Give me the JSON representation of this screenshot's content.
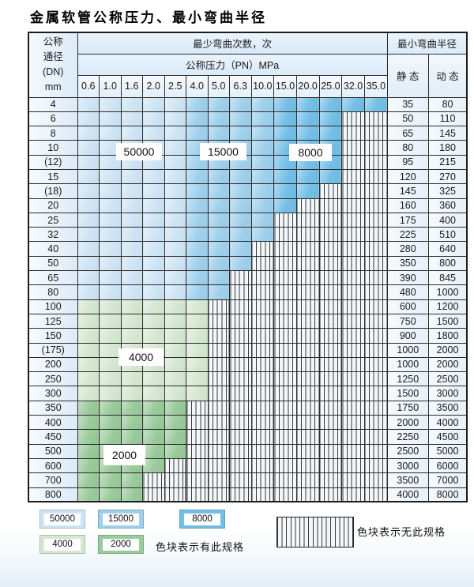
{
  "title": "金属软管公称压力、最小弯曲半径",
  "table": {
    "dn_header": {
      "line1": "公称",
      "line2": "通径",
      "line3": "(DN)",
      "line4": "mm"
    },
    "bend_cycles_header": "最少弯曲次数，次",
    "pressure_header": "公称压力（PN）MPa",
    "pressure_columns": [
      "0.6",
      "1.0",
      "1.6",
      "2.0",
      "2.5",
      "4.0",
      "5.0",
      "6.3",
      "10.0",
      "15.0",
      "20.0",
      "25.0",
      "32.0",
      "35.0"
    ],
    "radius_header": "最小弯曲半径",
    "static_header": "静 态",
    "dynamic_header": "动 态",
    "rows": [
      {
        "dn": "4",
        "colored": 14,
        "zone": "b",
        "static": "35",
        "dynamic": "80"
      },
      {
        "dn": "6",
        "colored": 12,
        "zone": "b",
        "static": "50",
        "dynamic": "110"
      },
      {
        "dn": "8",
        "colored": 12,
        "zone": "b",
        "static": "65",
        "dynamic": "145"
      },
      {
        "dn": "10",
        "colored": 12,
        "zone": "b",
        "static": "80",
        "dynamic": "180"
      },
      {
        "dn": "(12)",
        "colored": 12,
        "zone": "b",
        "static": "95",
        "dynamic": "215"
      },
      {
        "dn": "15",
        "colored": 12,
        "zone": "b",
        "static": "120",
        "dynamic": "270"
      },
      {
        "dn": "(18)",
        "colored": 11,
        "zone": "b",
        "static": "145",
        "dynamic": "325"
      },
      {
        "dn": "20",
        "colored": 10,
        "zone": "b",
        "static": "160",
        "dynamic": "360"
      },
      {
        "dn": "25",
        "colored": 9,
        "zone": "b",
        "static": "175",
        "dynamic": "400"
      },
      {
        "dn": "32",
        "colored": 9,
        "zone": "b",
        "static": "225",
        "dynamic": "510"
      },
      {
        "dn": "40",
        "colored": 8,
        "zone": "b",
        "static": "280",
        "dynamic": "640"
      },
      {
        "dn": "50",
        "colored": 8,
        "zone": "b",
        "static": "350",
        "dynamic": "800"
      },
      {
        "dn": "65",
        "colored": 7,
        "zone": "b",
        "static": "390",
        "dynamic": "845"
      },
      {
        "dn": "80",
        "colored": 7,
        "zone": "b",
        "static": "480",
        "dynamic": "1000"
      },
      {
        "dn": "100",
        "colored": 6,
        "zone": "gl",
        "static": "600",
        "dynamic": "1200"
      },
      {
        "dn": "125",
        "colored": 6,
        "zone": "gl",
        "static": "750",
        "dynamic": "1500"
      },
      {
        "dn": "150",
        "colored": 6,
        "zone": "gl",
        "static": "900",
        "dynamic": "1800"
      },
      {
        "dn": "(175)",
        "colored": 6,
        "zone": "gl",
        "static": "1000",
        "dynamic": "2000"
      },
      {
        "dn": "200",
        "colored": 6,
        "zone": "gl",
        "static": "1000",
        "dynamic": "2000"
      },
      {
        "dn": "250",
        "colored": 6,
        "zone": "gl",
        "static": "1250",
        "dynamic": "2500"
      },
      {
        "dn": "300",
        "colored": 6,
        "zone": "gl",
        "static": "1500",
        "dynamic": "3000"
      },
      {
        "dn": "350",
        "colored": 5,
        "zone": "gd",
        "static": "1750",
        "dynamic": "3500"
      },
      {
        "dn": "400",
        "colored": 5,
        "zone": "gd",
        "static": "2000",
        "dynamic": "4000"
      },
      {
        "dn": "450",
        "colored": 5,
        "zone": "gd",
        "static": "2250",
        "dynamic": "4500"
      },
      {
        "dn": "500",
        "colored": 5,
        "zone": "gd",
        "static": "2500",
        "dynamic": "5000"
      },
      {
        "dn": "600",
        "colored": 4,
        "zone": "gd",
        "static": "3000",
        "dynamic": "6000"
      },
      {
        "dn": "700",
        "colored": 3,
        "zone": "gd",
        "static": "3500",
        "dynamic": "7000"
      },
      {
        "dn": "800",
        "colored": 3,
        "zone": "gd",
        "static": "4000",
        "dynamic": "8000"
      }
    ]
  },
  "overlays": {
    "blue_50000": "50000",
    "blue_15000": "15000",
    "blue_8000": "8000",
    "green_4000": "4000",
    "green_2000": "2000"
  },
  "legend": {
    "blue_items": [
      "50000",
      "15000",
      "8000"
    ],
    "green_items": [
      "4000",
      "2000"
    ],
    "no_spec_text": "色块表示无此规格",
    "has_spec_text": "色块表示有此规格"
  },
  "colors": {
    "blue_light": "#cfe5f5",
    "blue_mid": "#9fd0ec",
    "blue_dark": "#74bfe6",
    "green_light": "#d5e8d1",
    "green_mid": "#9acb9b"
  }
}
